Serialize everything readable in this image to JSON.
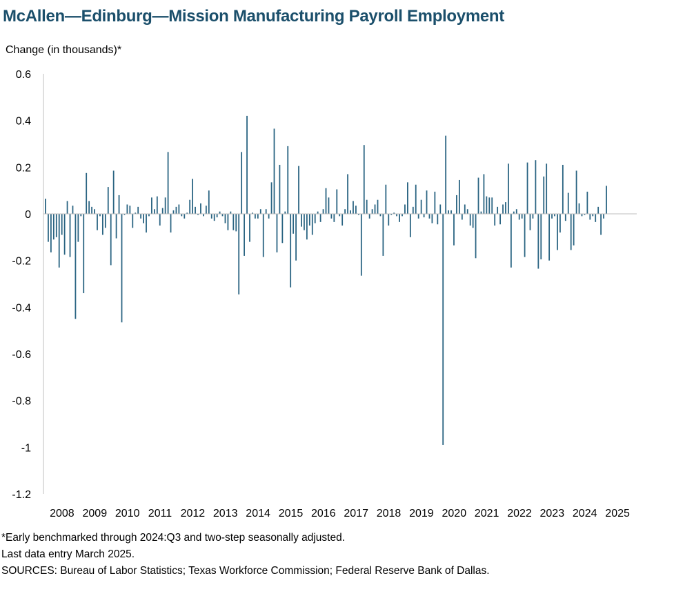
{
  "title": "McAllen—Edinburg—Mission Manufacturing Payroll Employment",
  "footnotes": [
    "*Early benchmarked through 2024:Q3 and two-step seasonally adjusted.",
    "Last data entry March 2025.",
    "SOURCES: Bureau of Labor Statistics; Texas Workforce Commission; Federal Reserve Bank of Dallas."
  ],
  "colors": {
    "bar": "#2a6482",
    "axis": "#bfbfbf",
    "title": "#1b4f6b"
  },
  "chart_data": {
    "type": "bar",
    "title": "McAllen—Edinburg—Mission Manufacturing Payroll Employment",
    "ylabel": "Change (in thousands)*",
    "xlabel": "",
    "ylim": [
      -1.2,
      0.6
    ],
    "yticks": [
      0.6,
      0.4,
      0.2,
      0,
      -0.2,
      -0.4,
      -0.6,
      -0.8,
      -1,
      -1.2
    ],
    "ytick_labels": [
      "0.6",
      "0.4",
      "0.2",
      "0",
      "-0.2",
      "-0.4",
      "-0.6",
      "-0.8",
      "-1",
      "-1.2"
    ],
    "xtick_labels": [
      "2008",
      "2009",
      "2010",
      "2011",
      "2012",
      "2013",
      "2014",
      "2015",
      "2016",
      "2017",
      "2018",
      "2019",
      "2020",
      "2021",
      "2022",
      "2023",
      "2024",
      "2025"
    ],
    "grid": false,
    "legend": "none",
    "start": "2008-01",
    "end": "2025-03",
    "frequency": "monthly",
    "values": [
      0.065,
      -0.12,
      -0.165,
      -0.11,
      -0.1,
      -0.23,
      -0.09,
      -0.175,
      0.055,
      -0.185,
      0.035,
      -0.45,
      -0.12,
      -0.01,
      -0.34,
      0.175,
      0.055,
      0.03,
      0.02,
      -0.07,
      -0.01,
      -0.09,
      -0.06,
      0.115,
      -0.22,
      0.185,
      -0.105,
      0.08,
      -0.465,
      -0.005,
      0.04,
      0.035,
      -0.06,
      0.005,
      0.03,
      -0.02,
      -0.04,
      -0.08,
      -0.01,
      0.07,
      0.02,
      0.075,
      -0.05,
      0.025,
      0.07,
      0.265,
      -0.08,
      0.015,
      0.03,
      0.04,
      -0.01,
      -0.02,
      0.005,
      0.06,
      0.15,
      0.03,
      -0.005,
      0.045,
      -0.01,
      0.035,
      0.1,
      -0.02,
      -0.03,
      -0.015,
      0.01,
      -0.01,
      -0.04,
      -0.07,
      0.01,
      -0.07,
      -0.075,
      -0.345,
      0.265,
      -0.18,
      0.42,
      -0.12,
      0.005,
      -0.02,
      -0.02,
      0.02,
      -0.185,
      0.02,
      -0.02,
      0.135,
      0.365,
      -0.165,
      0.21,
      -0.125,
      0.01,
      0.29,
      -0.315,
      -0.085,
      -0.2,
      0.205,
      -0.055,
      -0.07,
      -0.11,
      -0.05,
      -0.09,
      -0.04,
      0.01,
      -0.035,
      0.02,
      0.11,
      0.07,
      -0.02,
      -0.035,
      0.105,
      -0.01,
      -0.05,
      0.02,
      0.17,
      0.015,
      0.055,
      0.035,
      -0.005,
      -0.265,
      0.295,
      0.06,
      -0.02,
      0.02,
      0.04,
      0.06,
      -0.01,
      -0.18,
      0.125,
      -0.05,
      -0.005,
      0.005,
      -0.01,
      -0.035,
      -0.01,
      0.04,
      0.135,
      -0.1,
      0.03,
      0.125,
      -0.02,
      0.06,
      -0.015,
      0.1,
      -0.02,
      -0.04,
      0.095,
      -0.045,
      0.04,
      -0.99,
      0.335,
      0.015,
      0.015,
      -0.135,
      0.08,
      0.145,
      -0.025,
      0.04,
      0.02,
      -0.05,
      -0.06,
      -0.19,
      0.155,
      0.01,
      0.17,
      0.075,
      0.07,
      0.07,
      -0.05,
      0.03,
      -0.045,
      0.04,
      0.05,
      0.215,
      -0.23,
      0.01,
      0.02,
      -0.025,
      -0.02,
      -0.185,
      0.22,
      -0.07,
      -0.02,
      0.23,
      -0.235,
      -0.195,
      0.16,
      0.215,
      -0.2,
      -0.02,
      -0.01,
      -0.155,
      -0.08,
      0.21,
      -0.03,
      0.09,
      -0.155,
      -0.135,
      0.185,
      0.045,
      -0.01,
      -0.005,
      0.095,
      -0.025,
      -0.01,
      -0.035,
      0.03,
      -0.09,
      -0.02,
      0.12
    ]
  }
}
